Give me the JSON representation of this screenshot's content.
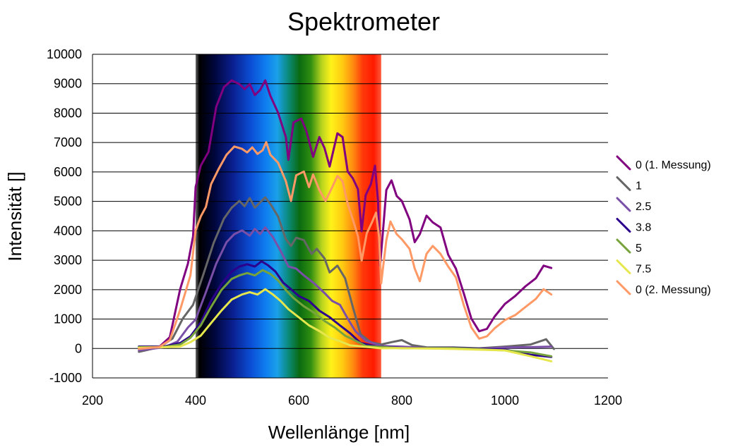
{
  "chart_data": {
    "type": "line",
    "title": "Spektrometer",
    "xlabel": "Wellenlänge [nm]",
    "ylabel": "Intensität []",
    "xlim": [
      200,
      1200
    ],
    "ylim": [
      -1000,
      10000
    ],
    "xticks": [
      200,
      400,
      600,
      800,
      1000,
      1200
    ],
    "yticks": [
      -1000,
      0,
      1000,
      2000,
      3000,
      4000,
      5000,
      6000,
      7000,
      8000,
      9000,
      10000
    ],
    "grid": "horizontal",
    "legend_position": "right",
    "background_band": {
      "from": 400,
      "to": 760,
      "description": "visible spectrum gradient"
    },
    "series": [
      {
        "name": "0 (1. Messung)",
        "color": "#800080",
        "points": [
          [
            290,
            0
          ],
          [
            330,
            50
          ],
          [
            350,
            400
          ],
          [
            370,
            2000
          ],
          [
            385,
            2900
          ],
          [
            395,
            3800
          ],
          [
            400,
            5500
          ],
          [
            410,
            6200
          ],
          [
            425,
            6700
          ],
          [
            440,
            8200
          ],
          [
            455,
            8900
          ],
          [
            470,
            9100
          ],
          [
            485,
            9000
          ],
          [
            495,
            8800
          ],
          [
            505,
            9000
          ],
          [
            515,
            8600
          ],
          [
            525,
            8800
          ],
          [
            535,
            9100
          ],
          [
            545,
            8600
          ],
          [
            560,
            8000
          ],
          [
            575,
            7200
          ],
          [
            580,
            6400
          ],
          [
            590,
            7700
          ],
          [
            605,
            7800
          ],
          [
            615,
            7400
          ],
          [
            628,
            6500
          ],
          [
            640,
            7200
          ],
          [
            650,
            6800
          ],
          [
            660,
            6200
          ],
          [
            675,
            7300
          ],
          [
            685,
            7200
          ],
          [
            695,
            6000
          ],
          [
            705,
            5800
          ],
          [
            715,
            5400
          ],
          [
            722,
            4000
          ],
          [
            730,
            5200
          ],
          [
            740,
            5600
          ],
          [
            748,
            6200
          ],
          [
            754,
            5000
          ],
          [
            758,
            2800
          ],
          [
            770,
            5400
          ],
          [
            780,
            5700
          ],
          [
            790,
            5200
          ],
          [
            800,
            5000
          ],
          [
            815,
            4400
          ],
          [
            825,
            3600
          ],
          [
            835,
            3900
          ],
          [
            848,
            4500
          ],
          [
            860,
            4300
          ],
          [
            875,
            4100
          ],
          [
            890,
            3200
          ],
          [
            905,
            2700
          ],
          [
            920,
            1900
          ],
          [
            935,
            1000
          ],
          [
            950,
            600
          ],
          [
            965,
            650
          ],
          [
            980,
            1100
          ],
          [
            1000,
            1500
          ],
          [
            1020,
            1800
          ],
          [
            1040,
            2100
          ],
          [
            1060,
            2400
          ],
          [
            1075,
            2800
          ],
          [
            1090,
            2750
          ]
        ]
      },
      {
        "name": "1",
        "color": "#666666",
        "points": [
          [
            290,
            -100
          ],
          [
            330,
            30
          ],
          [
            355,
            350
          ],
          [
            375,
            1000
          ],
          [
            395,
            1500
          ],
          [
            415,
            2500
          ],
          [
            435,
            3600
          ],
          [
            455,
            4400
          ],
          [
            470,
            4800
          ],
          [
            485,
            5000
          ],
          [
            495,
            4850
          ],
          [
            505,
            5100
          ],
          [
            515,
            4800
          ],
          [
            525,
            4950
          ],
          [
            535,
            5150
          ],
          [
            545,
            4900
          ],
          [
            560,
            4500
          ],
          [
            575,
            3700
          ],
          [
            585,
            3500
          ],
          [
            595,
            3750
          ],
          [
            610,
            3700
          ],
          [
            625,
            3200
          ],
          [
            635,
            3400
          ],
          [
            650,
            3050
          ],
          [
            660,
            2600
          ],
          [
            675,
            2800
          ],
          [
            690,
            2400
          ],
          [
            705,
            1400
          ],
          [
            720,
            500
          ],
          [
            740,
            200
          ],
          [
            760,
            150
          ],
          [
            780,
            200
          ],
          [
            800,
            300
          ],
          [
            820,
            100
          ],
          [
            850,
            50
          ],
          [
            900,
            20
          ],
          [
            950,
            20
          ],
          [
            1000,
            50
          ],
          [
            1050,
            150
          ],
          [
            1080,
            300
          ],
          [
            1095,
            0
          ]
        ]
      },
      {
        "name": "2.5",
        "color": "#7A4FA8",
        "points": [
          [
            290,
            -50
          ],
          [
            340,
            30
          ],
          [
            365,
            250
          ],
          [
            385,
            700
          ],
          [
            400,
            1000
          ],
          [
            420,
            1900
          ],
          [
            440,
            2900
          ],
          [
            460,
            3600
          ],
          [
            475,
            3900
          ],
          [
            490,
            4000
          ],
          [
            505,
            3850
          ],
          [
            515,
            4050
          ],
          [
            525,
            3900
          ],
          [
            535,
            4100
          ],
          [
            550,
            3800
          ],
          [
            565,
            3300
          ],
          [
            580,
            2800
          ],
          [
            595,
            2700
          ],
          [
            610,
            2500
          ],
          [
            630,
            2200
          ],
          [
            650,
            1900
          ],
          [
            665,
            1600
          ],
          [
            680,
            1500
          ],
          [
            695,
            1000
          ],
          [
            710,
            600
          ],
          [
            730,
            250
          ],
          [
            760,
            100
          ],
          [
            800,
            50
          ],
          [
            850,
            30
          ],
          [
            900,
            10
          ],
          [
            950,
            0
          ],
          [
            1000,
            20
          ],
          [
            1050,
            60
          ],
          [
            1090,
            50
          ]
        ]
      },
      {
        "name": "3.8",
        "color": "#2B008C",
        "points": [
          [
            290,
            80
          ],
          [
            340,
            60
          ],
          [
            370,
            200
          ],
          [
            390,
            400
          ],
          [
            410,
            900
          ],
          [
            430,
            1600
          ],
          [
            450,
            2200
          ],
          [
            470,
            2600
          ],
          [
            485,
            2800
          ],
          [
            500,
            2850
          ],
          [
            515,
            2800
          ],
          [
            528,
            2950
          ],
          [
            540,
            2850
          ],
          [
            555,
            2600
          ],
          [
            570,
            2250
          ],
          [
            585,
            2000
          ],
          [
            600,
            1800
          ],
          [
            620,
            1600
          ],
          [
            640,
            1300
          ],
          [
            660,
            1050
          ],
          [
            680,
            800
          ],
          [
            700,
            500
          ],
          [
            720,
            200
          ],
          [
            750,
            60
          ],
          [
            800,
            30
          ],
          [
            900,
            10
          ],
          [
            950,
            0
          ],
          [
            1000,
            -50
          ],
          [
            1050,
            -200
          ],
          [
            1090,
            -300
          ]
        ]
      },
      {
        "name": "5",
        "color": "#77A33D",
        "points": [
          [
            290,
            60
          ],
          [
            340,
            40
          ],
          [
            370,
            150
          ],
          [
            390,
            350
          ],
          [
            410,
            800
          ],
          [
            430,
            1400
          ],
          [
            450,
            2000
          ],
          [
            470,
            2350
          ],
          [
            485,
            2500
          ],
          [
            500,
            2550
          ],
          [
            515,
            2500
          ],
          [
            530,
            2650
          ],
          [
            545,
            2550
          ],
          [
            560,
            2300
          ],
          [
            575,
            2000
          ],
          [
            590,
            1700
          ],
          [
            610,
            1450
          ],
          [
            630,
            1200
          ],
          [
            650,
            950
          ],
          [
            670,
            700
          ],
          [
            690,
            450
          ],
          [
            710,
            250
          ],
          [
            730,
            100
          ],
          [
            760,
            40
          ],
          [
            800,
            20
          ],
          [
            900,
            0
          ],
          [
            1000,
            -50
          ],
          [
            1050,
            -150
          ],
          [
            1090,
            -250
          ]
        ]
      },
      {
        "name": "7.5",
        "color": "#E6E64D",
        "points": [
          [
            290,
            40
          ],
          [
            340,
            30
          ],
          [
            370,
            80
          ],
          [
            390,
            200
          ],
          [
            410,
            450
          ],
          [
            430,
            850
          ],
          [
            450,
            1300
          ],
          [
            470,
            1650
          ],
          [
            490,
            1850
          ],
          [
            505,
            1900
          ],
          [
            520,
            1850
          ],
          [
            535,
            2000
          ],
          [
            550,
            1850
          ],
          [
            565,
            1600
          ],
          [
            580,
            1350
          ],
          [
            600,
            1050
          ],
          [
            620,
            800
          ],
          [
            640,
            580
          ],
          [
            660,
            380
          ],
          [
            680,
            230
          ],
          [
            700,
            120
          ],
          [
            720,
            60
          ],
          [
            760,
            20
          ],
          [
            800,
            0
          ],
          [
            900,
            0
          ],
          [
            1000,
            -80
          ],
          [
            1050,
            -250
          ],
          [
            1090,
            -450
          ]
        ]
      },
      {
        "name": "0 (2. Messung)",
        "color": "#FF9966",
        "points": [
          [
            290,
            0
          ],
          [
            330,
            40
          ],
          [
            350,
            300
          ],
          [
            370,
            1300
          ],
          [
            390,
            2500
          ],
          [
            400,
            4000
          ],
          [
            410,
            4500
          ],
          [
            420,
            4800
          ],
          [
            430,
            5600
          ],
          [
            445,
            6100
          ],
          [
            460,
            6600
          ],
          [
            475,
            6850
          ],
          [
            490,
            6800
          ],
          [
            500,
            6650
          ],
          [
            510,
            6850
          ],
          [
            520,
            6600
          ],
          [
            530,
            6750
          ],
          [
            537,
            7000
          ],
          [
            545,
            6600
          ],
          [
            560,
            6300
          ],
          [
            575,
            5700
          ],
          [
            585,
            5000
          ],
          [
            595,
            5900
          ],
          [
            610,
            6000
          ],
          [
            620,
            5500
          ],
          [
            628,
            5900
          ],
          [
            640,
            5400
          ],
          [
            652,
            5000
          ],
          [
            665,
            5500
          ],
          [
            675,
            5850
          ],
          [
            685,
            5700
          ],
          [
            695,
            4900
          ],
          [
            705,
            4400
          ],
          [
            715,
            3800
          ],
          [
            722,
            3000
          ],
          [
            732,
            3900
          ],
          [
            742,
            4300
          ],
          [
            750,
            4600
          ],
          [
            756,
            3800
          ],
          [
            760,
            2200
          ],
          [
            770,
            3700
          ],
          [
            778,
            4300
          ],
          [
            790,
            3900
          ],
          [
            800,
            3700
          ],
          [
            815,
            3400
          ],
          [
            825,
            2700
          ],
          [
            835,
            2300
          ],
          [
            848,
            3200
          ],
          [
            860,
            3500
          ],
          [
            875,
            3200
          ],
          [
            890,
            2800
          ],
          [
            905,
            2400
          ],
          [
            920,
            1500
          ],
          [
            935,
            700
          ],
          [
            950,
            350
          ],
          [
            965,
            400
          ],
          [
            980,
            700
          ],
          [
            1000,
            950
          ],
          [
            1020,
            1150
          ],
          [
            1040,
            1400
          ],
          [
            1060,
            1700
          ],
          [
            1075,
            2000
          ],
          [
            1090,
            1850
          ]
        ]
      }
    ]
  }
}
